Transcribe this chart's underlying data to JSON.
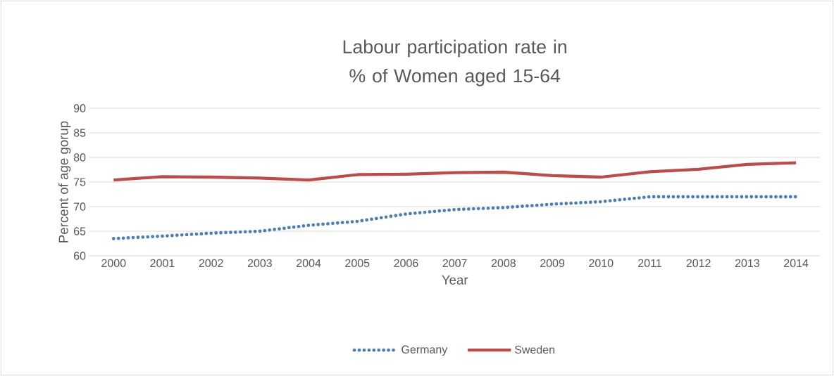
{
  "chart_data": {
    "type": "line",
    "title": "Labour participation rate in % of Women aged 15-64",
    "xlabel": "Year",
    "ylabel": "Percent of age gorup",
    "categories": [
      "2000",
      "2001",
      "2002",
      "2003",
      "2004",
      "2005",
      "2006",
      "2007",
      "2008",
      "2009",
      "2010",
      "2011",
      "2012",
      "2013",
      "2014"
    ],
    "series": [
      {
        "name": "Germany",
        "color": "#4a7ebb",
        "line_style": "dotted",
        "values": [
          63.5,
          64.0,
          64.6,
          65.0,
          66.2,
          67.0,
          68.5,
          69.4,
          69.8,
          70.5,
          71.0,
          72.0,
          72.0,
          72.0,
          72.0
        ]
      },
      {
        "name": "Sweden",
        "color": "#be4b48",
        "line_style": "solid",
        "values": [
          75.4,
          76.1,
          76.0,
          75.8,
          75.4,
          76.5,
          76.6,
          76.9,
          77.0,
          76.3,
          76.0,
          77.1,
          77.6,
          78.6,
          78.9
        ]
      }
    ],
    "ylim": [
      60,
      90
    ],
    "yticks": [
      60,
      65,
      70,
      75,
      80,
      85,
      90
    ],
    "grid": "y",
    "legend": "bottom"
  }
}
